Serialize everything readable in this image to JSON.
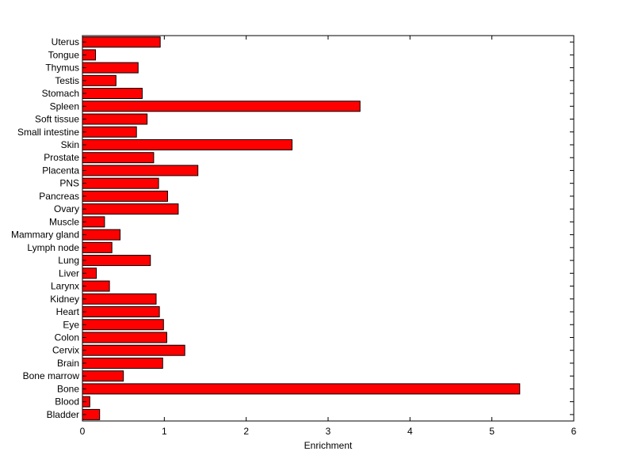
{
  "chart_data": {
    "type": "bar",
    "orientation": "horizontal",
    "title": "",
    "xlabel": "Enrichment",
    "ylabel": "",
    "xlim": [
      0,
      6
    ],
    "xticks": [
      0,
      1,
      2,
      3,
      4,
      5,
      6
    ],
    "grid": false,
    "legend": "none",
    "bar_color": "#ff0000",
    "edge_color": "#000000",
    "categories": [
      "Bladder",
      "Blood",
      "Bone",
      "Bone marrow",
      "Brain",
      "Cervix",
      "Colon",
      "Eye",
      "Heart",
      "Kidney",
      "Larynx",
      "Liver",
      "Lung",
      "Lymph node",
      "Mammary gland",
      "Muscle",
      "Ovary",
      "Pancreas",
      "PNS",
      "Placenta",
      "Prostate",
      "Skin",
      "Small intestine",
      "Soft tissue",
      "Spleen",
      "Stomach",
      "Testis",
      "Thymus",
      "Tongue",
      "Uterus"
    ],
    "values": [
      0.21,
      0.09,
      5.34,
      0.5,
      0.98,
      1.25,
      1.03,
      0.99,
      0.94,
      0.9,
      0.33,
      0.17,
      0.83,
      0.36,
      0.46,
      0.27,
      1.17,
      1.04,
      0.93,
      1.41,
      0.87,
      2.56,
      0.66,
      0.79,
      3.39,
      0.73,
      0.41,
      0.68,
      0.16,
      0.95
    ]
  }
}
